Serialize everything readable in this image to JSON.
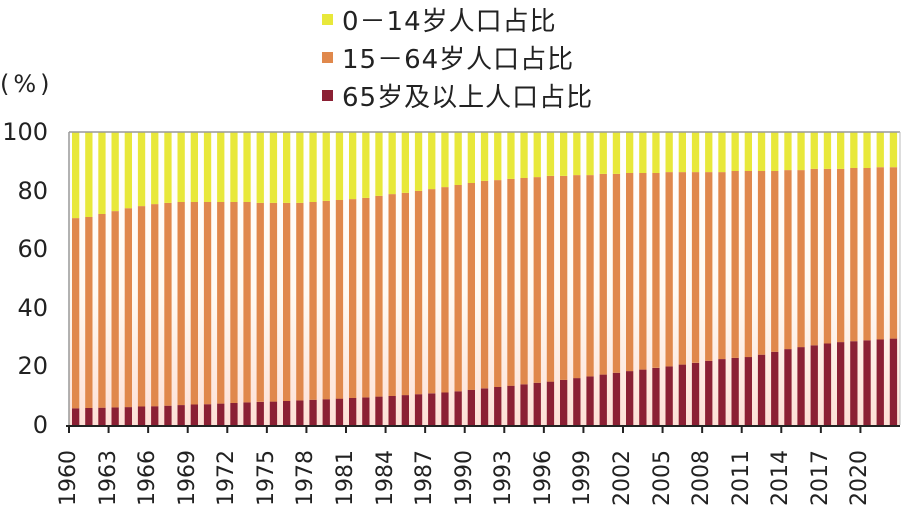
{
  "legend": [
    {
      "label": "0－14岁人口占比",
      "color": "#e8e83a"
    },
    {
      "label": "15－64岁人口占比",
      "color": "#e0884c"
    },
    {
      "label": "65岁及以上人口占比",
      "color": "#8b2034"
    }
  ],
  "axis": {
    "unit": "(%)",
    "yticks": [
      "100",
      "80",
      "60",
      "40",
      "20",
      "0"
    ],
    "xticks": [
      "1960",
      "1963",
      "1966",
      "1969",
      "1972",
      "1975",
      "1978",
      "1981",
      "1984",
      "1987",
      "1990",
      "1993",
      "1996",
      "1999",
      "2002",
      "2005",
      "2008",
      "2011",
      "2014",
      "2017",
      "2020"
    ]
  },
  "chart_data": {
    "type": "bar",
    "stacked": true,
    "title": "",
    "xlabel": "",
    "ylabel": "(%)",
    "ylim": [
      0,
      100
    ],
    "categories": [
      1960,
      1961,
      1962,
      1963,
      1964,
      1965,
      1966,
      1967,
      1968,
      1969,
      1970,
      1971,
      1972,
      1973,
      1974,
      1975,
      1976,
      1977,
      1978,
      1979,
      1980,
      1981,
      1982,
      1983,
      1984,
      1985,
      1986,
      1987,
      1988,
      1989,
      1990,
      1991,
      1992,
      1993,
      1994,
      1995,
      1996,
      1997,
      1998,
      1999,
      2000,
      2001,
      2002,
      2003,
      2004,
      2005,
      2006,
      2007,
      2008,
      2009,
      2010,
      2011,
      2012,
      2013,
      2014,
      2015,
      2016,
      2017,
      2018,
      2019,
      2020,
      2021,
      2022
    ],
    "series": [
      {
        "name": "65岁及以上人口占比",
        "values": [
          5.7,
          5.8,
          5.9,
          6.0,
          6.1,
          6.3,
          6.4,
          6.6,
          6.8,
          7.0,
          7.1,
          7.3,
          7.5,
          7.7,
          7.9,
          8.0,
          8.2,
          8.4,
          8.6,
          8.8,
          9.0,
          9.2,
          9.4,
          9.7,
          9.9,
          10.2,
          10.5,
          10.8,
          11.1,
          11.5,
          12.0,
          12.5,
          13.0,
          13.4,
          13.9,
          14.4,
          14.8,
          15.4,
          16.0,
          16.6,
          17.2,
          17.8,
          18.4,
          18.9,
          19.5,
          20.0,
          20.6,
          21.2,
          21.9,
          22.5,
          22.9,
          23.2,
          24.0,
          25.0,
          25.9,
          26.6,
          27.2,
          27.8,
          28.3,
          28.6,
          28.9,
          29.2,
          29.5
        ]
      },
      {
        "name": "15－64岁人口占比",
        "values": [
          64.9,
          65.2,
          66.1,
          67.0,
          67.9,
          68.4,
          69.0,
          69.2,
          69.3,
          69.1,
          69.0,
          68.8,
          68.6,
          68.4,
          67.9,
          67.8,
          67.6,
          67.4,
          67.5,
          67.7,
          67.8,
          67.9,
          68.1,
          68.5,
          68.9,
          69.0,
          69.4,
          69.7,
          70.1,
          70.4,
          70.6,
          70.8,
          70.6,
          70.6,
          70.4,
          70.2,
          70.2,
          69.6,
          69.3,
          68.7,
          68.5,
          67.9,
          67.6,
          67.1,
          66.5,
          66.3,
          65.7,
          65.1,
          64.4,
          63.8,
          63.8,
          63.5,
          62.7,
          61.7,
          61.1,
          60.4,
          60.2,
          59.6,
          59.1,
          59.1,
          58.8,
          58.8,
          58.5
        ]
      },
      {
        "name": "0－14岁人口占比",
        "values": [
          29.4,
          29.0,
          28.0,
          27.0,
          26.0,
          25.3,
          24.6,
          24.2,
          23.9,
          23.9,
          23.9,
          23.9,
          23.9,
          23.9,
          24.2,
          24.2,
          24.2,
          24.2,
          23.9,
          23.5,
          23.2,
          22.9,
          22.5,
          21.8,
          21.2,
          20.8,
          20.1,
          19.5,
          18.8,
          18.1,
          17.4,
          16.7,
          16.4,
          16.0,
          15.7,
          15.4,
          15.0,
          15.0,
          14.7,
          14.7,
          14.3,
          14.3,
          14.0,
          14.0,
          14.0,
          13.7,
          13.7,
          13.7,
          13.7,
          13.7,
          13.3,
          13.3,
          13.3,
          13.3,
          13.0,
          13.0,
          12.6,
          12.6,
          12.6,
          12.3,
          12.3,
          12.0,
          12.0
        ]
      }
    ],
    "legend_position": "top",
    "grid": false
  }
}
